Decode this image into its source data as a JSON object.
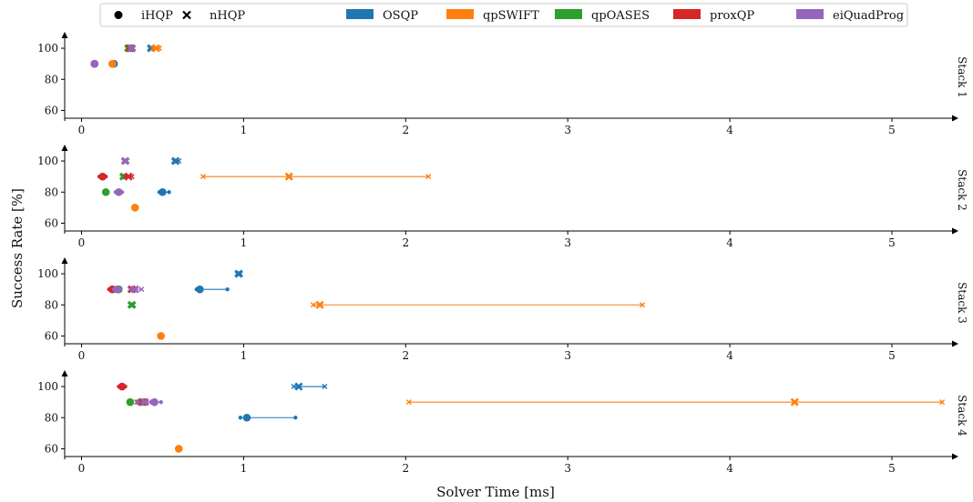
{
  "chart_data": {
    "type": "scatter",
    "xlabel": "Solver Time [ms]",
    "ylabel": "Success Rate [%]",
    "xlim": [
      -0.1,
      5.4
    ],
    "ylim": [
      55,
      111
    ],
    "xticks": [
      0,
      1,
      2,
      3,
      4,
      5
    ],
    "yticks": [
      60,
      80,
      100
    ],
    "grid": false,
    "legend_position": "top",
    "markers": [
      {
        "label": "iHQP",
        "shape": "circle"
      },
      {
        "label": "nHQP",
        "shape": "x"
      }
    ],
    "solvers": [
      {
        "name": "OSQP",
        "color": "#1f77b4"
      },
      {
        "name": "qpSWIFT",
        "color": "#ff7f0e"
      },
      {
        "name": "qpOASES",
        "color": "#2ca02c"
      },
      {
        "name": "proxQP",
        "color": "#d62728"
      },
      {
        "name": "eiQuadProg",
        "color": "#9467bd"
      }
    ],
    "panels": [
      {
        "title": "Stack 1",
        "points": [
          {
            "solver": "OSQP",
            "method": "iHQP",
            "y": 90,
            "x": 0.2,
            "min": 0.19,
            "max": 0.21
          },
          {
            "solver": "OSQP",
            "method": "nHQP",
            "y": 100,
            "x": 0.43,
            "min": 0.42,
            "max": 0.44
          },
          {
            "solver": "qpSWIFT",
            "method": "iHQP",
            "y": 90,
            "x": 0.19,
            "min": 0.18,
            "max": 0.2
          },
          {
            "solver": "qpSWIFT",
            "method": "nHQP",
            "y": 100,
            "x": 0.46,
            "min": 0.44,
            "max": 0.48
          },
          {
            "solver": "qpOASES",
            "method": "iHQP",
            "y": 90,
            "x": 0.08,
            "min": 0.07,
            "max": 0.09
          },
          {
            "solver": "qpOASES",
            "method": "nHQP",
            "y": 100,
            "x": 0.29,
            "min": 0.28,
            "max": 0.3
          },
          {
            "solver": "proxQP",
            "method": "iHQP",
            "y": 90,
            "x": 0.08,
            "min": 0.07,
            "max": 0.09
          },
          {
            "solver": "proxQP",
            "method": "nHQP",
            "y": 100,
            "x": 0.3,
            "min": 0.29,
            "max": 0.31
          },
          {
            "solver": "eiQuadProg",
            "method": "iHQP",
            "y": 90,
            "x": 0.08,
            "min": 0.07,
            "max": 0.09
          },
          {
            "solver": "eiQuadProg",
            "method": "nHQP",
            "y": 100,
            "x": 0.31,
            "min": 0.3,
            "max": 0.32
          }
        ]
      },
      {
        "title": "Stack 2",
        "points": [
          {
            "solver": "OSQP",
            "method": "iHQP",
            "y": 80,
            "x": 0.5,
            "min": 0.48,
            "max": 0.54
          },
          {
            "solver": "OSQP",
            "method": "nHQP",
            "y": 100,
            "x": 0.58,
            "min": 0.57,
            "max": 0.6
          },
          {
            "solver": "qpSWIFT",
            "method": "iHQP",
            "y": 70,
            "x": 0.33,
            "min": 0.32,
            "max": 0.34
          },
          {
            "solver": "qpSWIFT",
            "method": "nHQP",
            "y": 90,
            "x": 1.28,
            "min": 0.75,
            "max": 2.14
          },
          {
            "solver": "qpOASES",
            "method": "iHQP",
            "y": 80,
            "x": 0.15,
            "min": 0.14,
            "max": 0.16
          },
          {
            "solver": "qpOASES",
            "method": "nHQP",
            "y": 90,
            "x": 0.26,
            "min": 0.25,
            "max": 0.27
          },
          {
            "solver": "proxQP",
            "method": "iHQP",
            "y": 90,
            "x": 0.13,
            "min": 0.11,
            "max": 0.15
          },
          {
            "solver": "proxQP",
            "method": "nHQP",
            "y": 90,
            "x": 0.29,
            "min": 0.27,
            "max": 0.31
          },
          {
            "solver": "eiQuadProg",
            "method": "iHQP",
            "y": 80,
            "x": 0.23,
            "min": 0.21,
            "max": 0.25
          },
          {
            "solver": "eiQuadProg",
            "method": "nHQP",
            "y": 100,
            "x": 0.27,
            "min": 0.26,
            "max": 0.28
          }
        ]
      },
      {
        "title": "Stack 3",
        "points": [
          {
            "solver": "OSQP",
            "method": "iHQP",
            "y": 90,
            "x": 0.73,
            "min": 0.71,
            "max": 0.9
          },
          {
            "solver": "OSQP",
            "method": "nHQP",
            "y": 100,
            "x": 0.97,
            "min": 0.96,
            "max": 0.98
          },
          {
            "solver": "qpSWIFT",
            "method": "iHQP",
            "y": 60,
            "x": 0.49,
            "min": 0.48,
            "max": 0.5
          },
          {
            "solver": "qpSWIFT",
            "method": "nHQP",
            "y": 80,
            "x": 1.47,
            "min": 1.43,
            "max": 3.46
          },
          {
            "solver": "qpOASES",
            "method": "iHQP",
            "y": 90,
            "x": 0.23,
            "min": 0.22,
            "max": 0.24
          },
          {
            "solver": "qpOASES",
            "method": "nHQP",
            "y": 80,
            "x": 0.31,
            "min": 0.3,
            "max": 0.32
          },
          {
            "solver": "proxQP",
            "method": "iHQP",
            "y": 90,
            "x": 0.19,
            "min": 0.17,
            "max": 0.22
          },
          {
            "solver": "proxQP",
            "method": "nHQP",
            "y": 90,
            "x": 0.31,
            "min": 0.3,
            "max": 0.33
          },
          {
            "solver": "eiQuadProg",
            "method": "iHQP",
            "y": 90,
            "x": 0.22,
            "min": 0.2,
            "max": 0.24
          },
          {
            "solver": "eiQuadProg",
            "method": "nHQP",
            "y": 90,
            "x": 0.33,
            "min": 0.3,
            "max": 0.37
          }
        ]
      },
      {
        "title": "Stack 4",
        "points": [
          {
            "solver": "OSQP",
            "method": "iHQP",
            "y": 80,
            "x": 1.02,
            "min": 0.98,
            "max": 1.32
          },
          {
            "solver": "OSQP",
            "method": "nHQP",
            "y": 100,
            "x": 1.34,
            "min": 1.31,
            "max": 1.5
          },
          {
            "solver": "qpSWIFT",
            "method": "iHQP",
            "y": 60,
            "x": 0.6,
            "min": 0.59,
            "max": 0.61
          },
          {
            "solver": "qpSWIFT",
            "method": "nHQP",
            "y": 90,
            "x": 4.4,
            "min": 2.02,
            "max": 5.31
          },
          {
            "solver": "qpOASES",
            "method": "iHQP",
            "y": 90,
            "x": 0.3,
            "min": 0.29,
            "max": 0.31
          },
          {
            "solver": "qpOASES",
            "method": "nHQP",
            "y": 90,
            "x": 0.37,
            "min": 0.36,
            "max": 0.38
          },
          {
            "solver": "proxQP",
            "method": "iHQP",
            "y": 100,
            "x": 0.25,
            "min": 0.23,
            "max": 0.27
          },
          {
            "solver": "proxQP",
            "method": "nHQP",
            "y": 90,
            "x": 0.38,
            "min": 0.35,
            "max": 0.4
          },
          {
            "solver": "eiQuadProg",
            "method": "iHQP",
            "y": 90,
            "x": 0.45,
            "min": 0.43,
            "max": 0.49
          },
          {
            "solver": "eiQuadProg",
            "method": "nHQP",
            "y": 90,
            "x": 0.39,
            "min": 0.34,
            "max": 0.44
          }
        ]
      }
    ]
  }
}
